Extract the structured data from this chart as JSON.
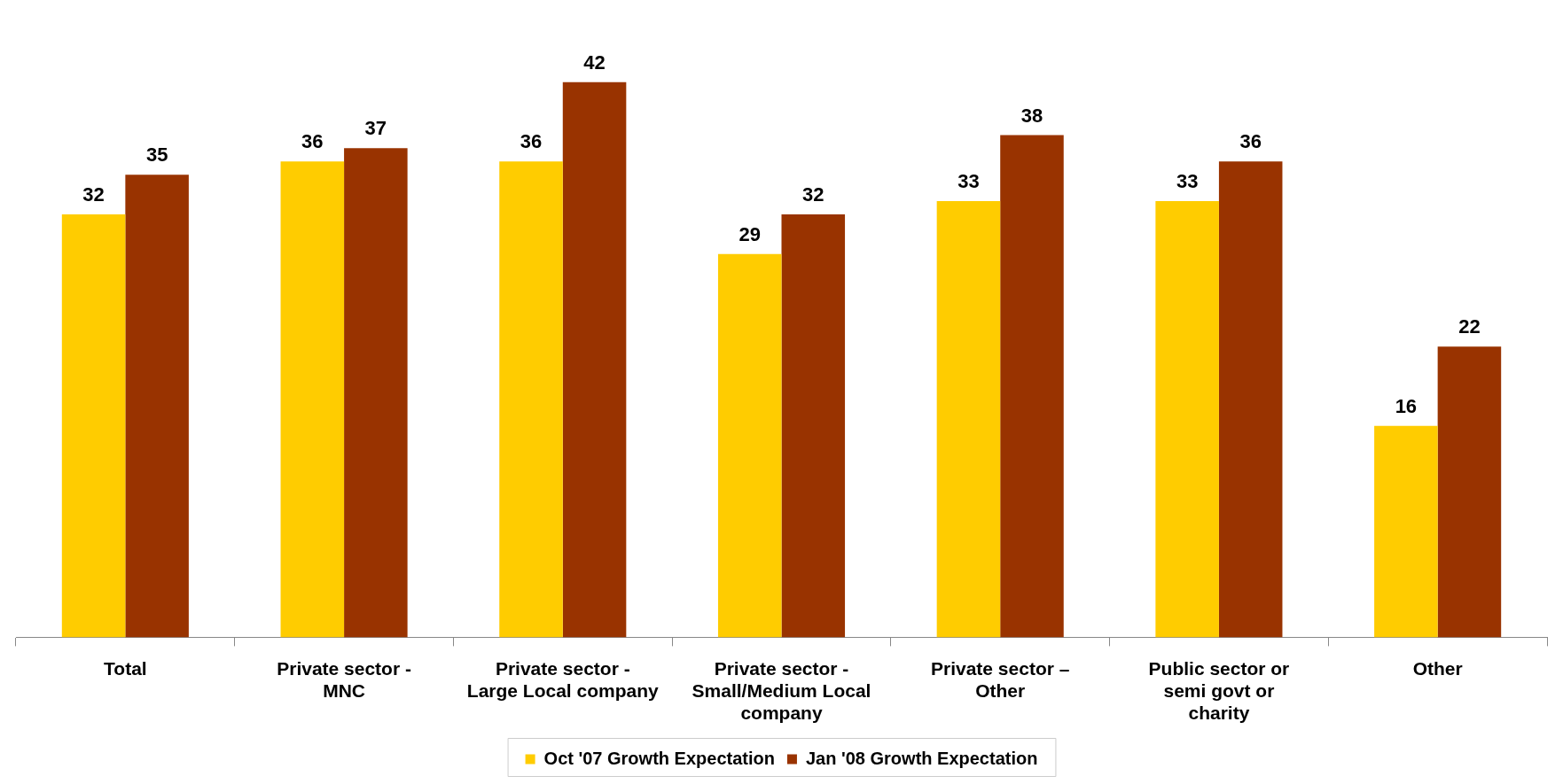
{
  "chart_data": {
    "type": "bar",
    "categories": [
      "Total",
      "Private sector - MNC",
      "Private sector - Large Local company",
      "Private sector - Small/Medium Local company",
      "Private sector – Other",
      "Public sector or semi govt or charity",
      "Other"
    ],
    "series": [
      {
        "name": "Oct '07 Growth Expectation",
        "color": "#ffcc00",
        "values": [
          32,
          36,
          36,
          29,
          33,
          33,
          16
        ]
      },
      {
        "name": "Jan '08 Growth Expectation",
        "color": "#993300",
        "values": [
          35,
          37,
          42,
          32,
          38,
          36,
          22
        ]
      }
    ],
    "data_labels": true,
    "legend": "bottom",
    "grid": false
  }
}
